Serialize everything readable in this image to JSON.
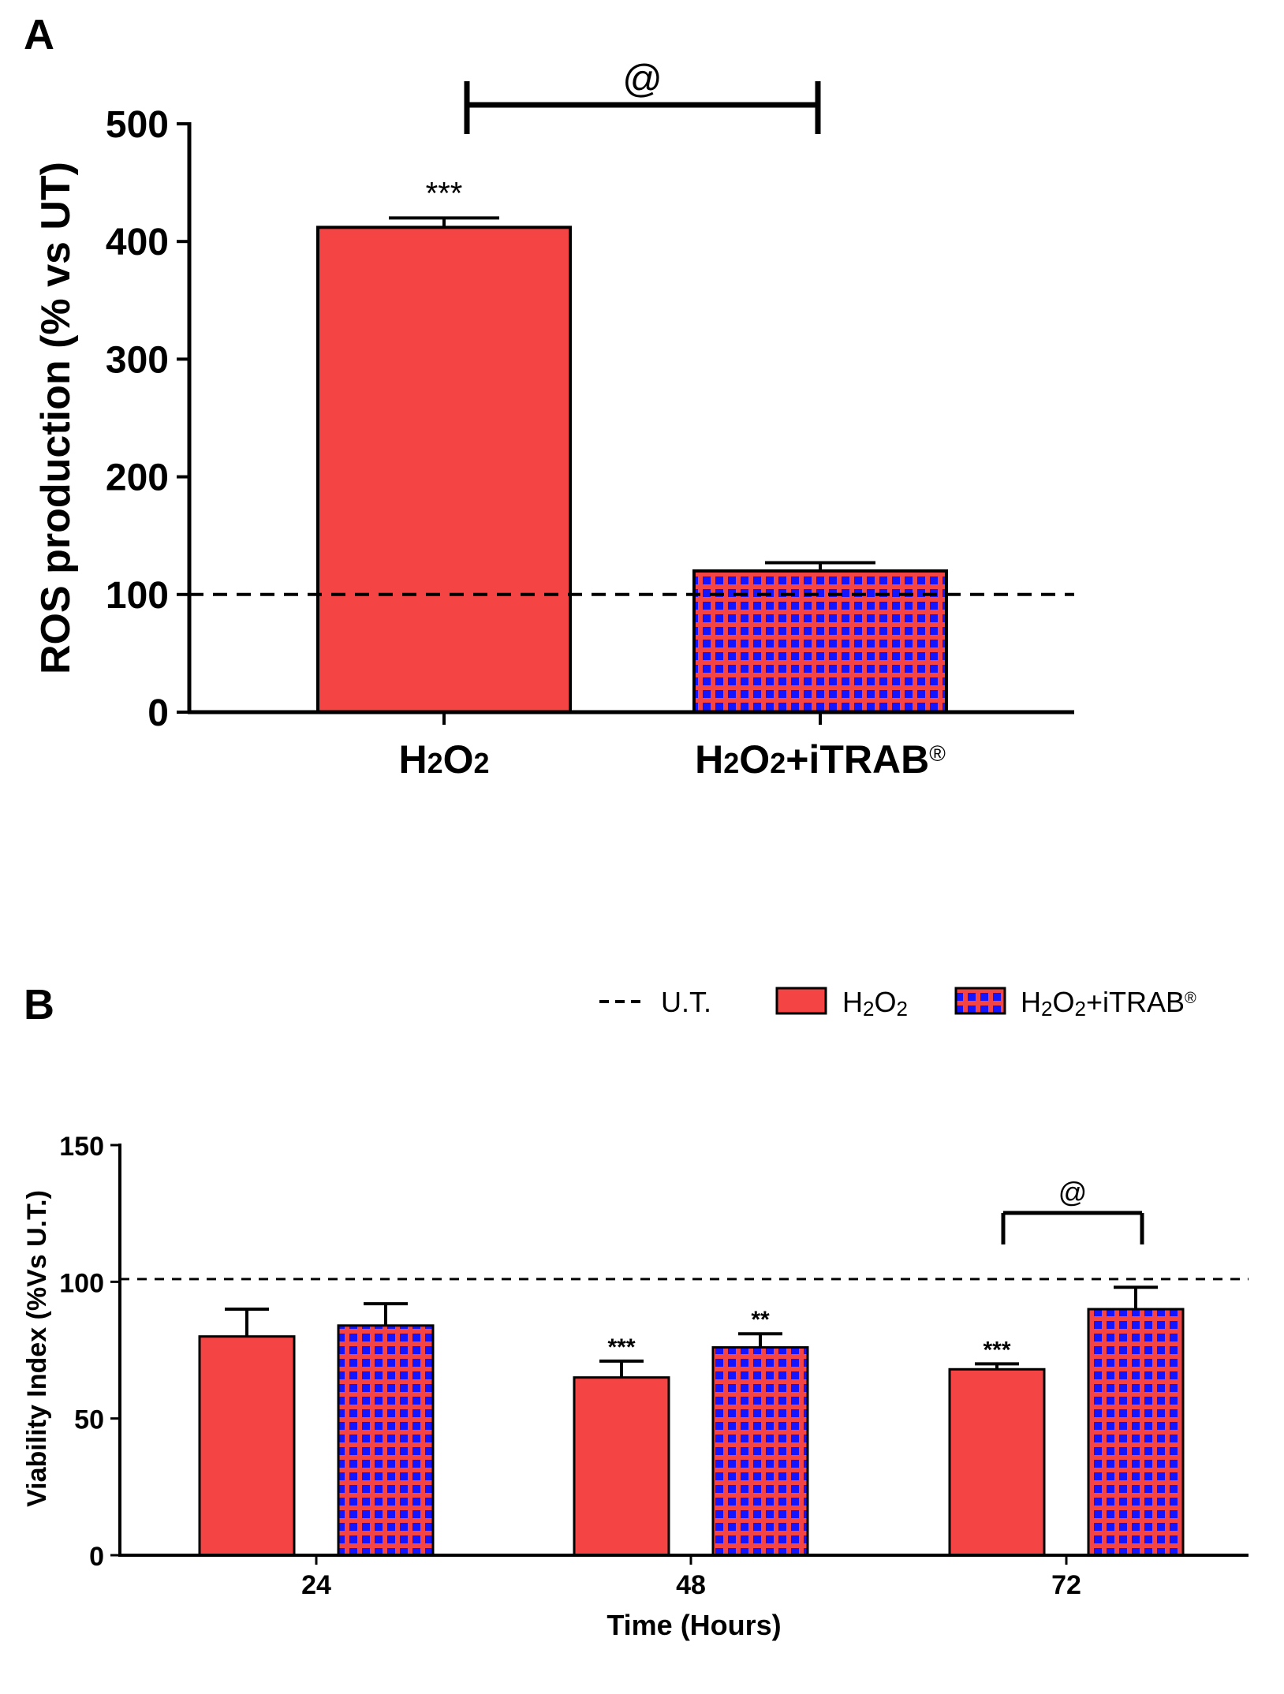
{
  "colors": {
    "red": "#f44444",
    "blue": "#1414ff",
    "grid_red": "#f44444",
    "axis": "#000000"
  },
  "chart_data": [
    {
      "panel": "A",
      "type": "bar",
      "ylabel": "ROS production (% vs UT)",
      "ylim": [
        0,
        500
      ],
      "yticks": [
        "0",
        "100",
        "200",
        "300",
        "400",
        "500"
      ],
      "categories": [
        {
          "base": "H",
          "sub1": "2",
          "mid": "O",
          "sub2": "2",
          "tail": "",
          "reg": ""
        },
        {
          "base": "H",
          "sub1": "2",
          "mid": "O",
          "sub2": "2",
          "tail": "+iTRAB",
          "reg": "®"
        }
      ],
      "values": [
        412,
        120
      ],
      "errors": [
        8,
        7
      ],
      "patterns": [
        "solid",
        "checker"
      ],
      "reference_line": 100,
      "significance": [
        "***",
        ""
      ],
      "bracket": {
        "from": 0,
        "to": 1,
        "label": "@"
      }
    },
    {
      "panel": "B",
      "type": "bar",
      "xlabel": "Time (Hours)",
      "ylabel": "Viability Index (%Vs U.T.)",
      "ylim": [
        0,
        150
      ],
      "yticks": [
        "0",
        "50",
        "100",
        "150"
      ],
      "categories": [
        "24",
        "48",
        "72"
      ],
      "series": [
        {
          "name": "H2O2",
          "values": [
            80,
            65,
            68
          ],
          "errors": [
            10,
            6,
            2
          ],
          "significance": [
            "",
            "***",
            "***"
          ]
        },
        {
          "name": "H2O2+iTRAB",
          "values": [
            84,
            76,
            90
          ],
          "errors": [
            8,
            5,
            8
          ],
          "significance": [
            "",
            "**",
            ""
          ]
        }
      ],
      "reference_line": 101,
      "bracket": {
        "category": 2,
        "label": "@"
      },
      "legend": {
        "placement": "top-right",
        "items": [
          {
            "kind": "dash",
            "label": "U.T."
          },
          {
            "kind": "solid",
            "base": "H",
            "sub1": "2",
            "mid": "O",
            "sub2": "2",
            "tail": "",
            "reg": ""
          },
          {
            "kind": "checker",
            "base": "H",
            "sub1": "2",
            "mid": "O",
            "sub2": "2",
            "tail": "+iTRAB",
            "reg": "®"
          }
        ]
      }
    }
  ]
}
